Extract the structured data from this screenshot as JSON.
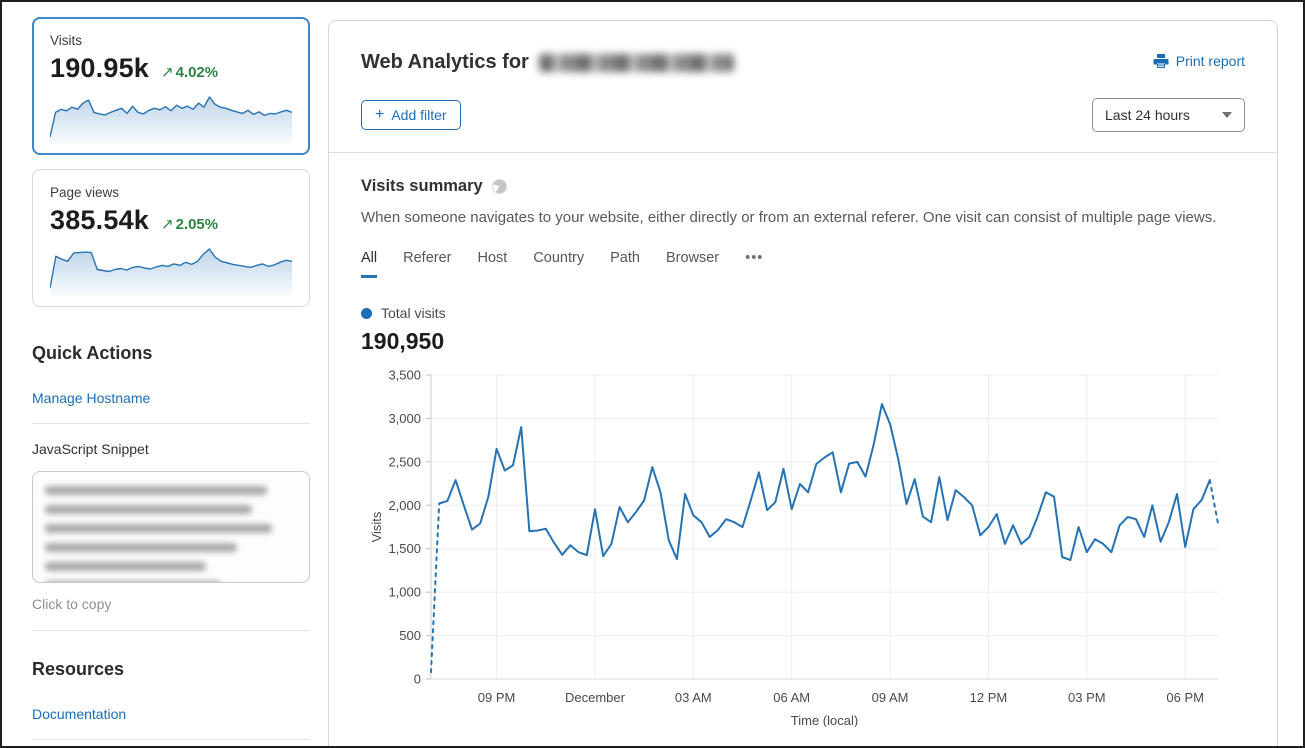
{
  "colors": {
    "accent_blue": "#1a6eb8",
    "chart_blue": "#2673b4",
    "trend_green": "#2c8442"
  },
  "sidebar": {
    "visits_card": {
      "label": "Visits",
      "value": "190.95k",
      "trend_arrow": "↗",
      "trend": "4.02%"
    },
    "pageviews_card": {
      "label": "Page views",
      "value": "385.54k",
      "trend_arrow": "↗",
      "trend": "2.05%"
    },
    "quick_actions": {
      "title": "Quick Actions",
      "manage_hostname": "Manage Hostname",
      "javascript_snippet": "JavaScript Snippet",
      "click_to_copy": "Click to copy"
    },
    "resources": {
      "title": "Resources",
      "documentation": "Documentation"
    }
  },
  "header": {
    "title_prefix": "Web Analytics for",
    "print_report": "Print report",
    "add_filter": "Add filter",
    "plus": "+",
    "time_range": "Last 24 hours"
  },
  "visits_summary": {
    "title": "Visits summary",
    "description": "When someone navigates to your website, either directly or from an external referer. One visit can consist of multiple page views.",
    "tabs": [
      "All",
      "Referer",
      "Host",
      "Country",
      "Path",
      "Browser",
      "•••"
    ],
    "active_tab": "All",
    "legend_label": "Total visits",
    "total": "190,950"
  },
  "chart_data": {
    "type": "line",
    "title": "Visits summary",
    "xlabel": "Time (local)",
    "ylabel": "Visits",
    "ylim": [
      0,
      3500
    ],
    "yticks": [
      0,
      500,
      1000,
      1500,
      2000,
      2500,
      3000,
      3500
    ],
    "grid": true,
    "legend_position": "top-left",
    "x_unit": "15-minute intervals over last 24 hours",
    "xticks": [
      {
        "index": 8,
        "label": "09 PM"
      },
      {
        "index": 20,
        "label": "December"
      },
      {
        "index": 32,
        "label": "03 AM"
      },
      {
        "index": 44,
        "label": "06 AM"
      },
      {
        "index": 56,
        "label": "09 AM"
      },
      {
        "index": 68,
        "label": "12 PM"
      },
      {
        "index": 80,
        "label": "03 PM"
      },
      {
        "index": 92,
        "label": "06 PM"
      }
    ],
    "series": [
      {
        "name": "Total visits",
        "dashed_head": 1,
        "dashed_tail": 1,
        "values": [
          80,
          2020,
          2050,
          2290,
          2000,
          1720,
          1790,
          2100,
          2650,
          2400,
          2460,
          2900,
          1700,
          1710,
          1730,
          1570,
          1430,
          1540,
          1460,
          1425,
          1955,
          1415,
          1555,
          1980,
          1805,
          1920,
          2055,
          2440,
          2150,
          1600,
          1380,
          2130,
          1885,
          1805,
          1635,
          1715,
          1840,
          1805,
          1750,
          2055,
          2380,
          1945,
          2035,
          2420,
          1955,
          2245,
          2150,
          2475,
          2550,
          2610,
          2150,
          2480,
          2500,
          2330,
          2700,
          3165,
          2935,
          2530,
          2015,
          2300,
          1870,
          1805,
          2325,
          1830,
          2175,
          2095,
          2000,
          1655,
          1750,
          1900,
          1555,
          1770,
          1555,
          1635,
          1870,
          2150,
          2100,
          1405,
          1370,
          1750,
          1460,
          1610,
          1555,
          1460,
          1770,
          1865,
          1840,
          1635,
          2000,
          1580,
          1805,
          2130,
          1520,
          1955,
          2060,
          2290,
          1790
        ]
      }
    ]
  },
  "sparklines": {
    "visits": [
      4,
      52,
      58,
      55,
      62,
      58,
      70,
      76,
      52,
      49,
      47,
      52,
      56,
      60,
      50,
      64,
      52,
      49,
      56,
      60,
      57,
      63,
      55,
      66,
      60,
      64,
      58,
      70,
      62,
      82,
      68,
      62,
      60,
      56,
      53,
      50,
      56,
      48,
      53,
      46,
      50,
      49,
      53,
      56,
      52
    ],
    "pageviews": [
      6,
      68,
      62,
      58,
      74,
      75,
      76,
      75,
      42,
      40,
      38,
      42,
      44,
      41,
      46,
      48,
      45,
      43,
      47,
      50,
      48,
      53,
      50,
      56,
      52,
      58,
      72,
      82,
      66,
      58,
      55,
      52,
      50,
      48,
      46,
      50,
      53,
      48,
      51,
      56,
      60,
      58
    ]
  }
}
